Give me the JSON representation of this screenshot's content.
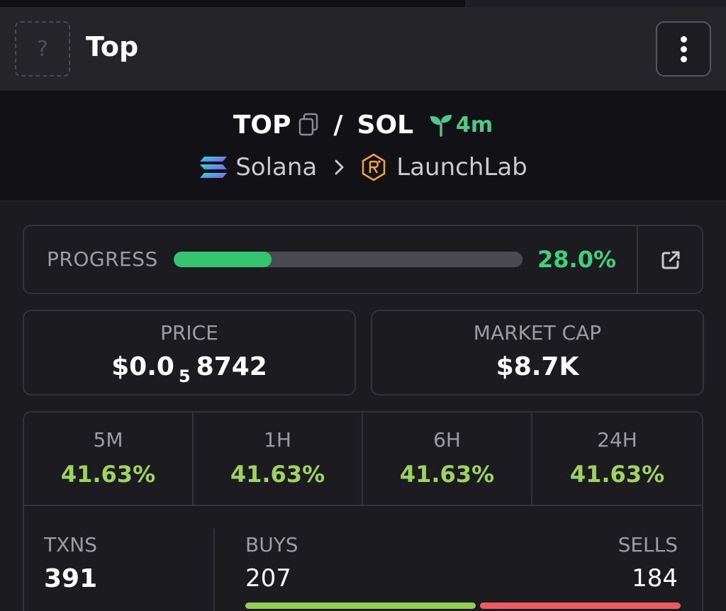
{
  "header": {
    "avatar_glyph": "?",
    "title": "Top",
    "menu_icon": "kebab-menu-icon"
  },
  "pair": {
    "base": "TOP",
    "separator": "/",
    "quote": "SOL",
    "age": "4m",
    "icons": [
      "copy-icon",
      "sprout-icon"
    ]
  },
  "chain": {
    "network": "Solana",
    "dex": "LaunchLab",
    "icons": [
      "solana-logo-icon",
      "chevron-right-icon",
      "launchlab-logo-icon"
    ]
  },
  "progress": {
    "label": "PROGRESS",
    "value": "28.0%",
    "fraction": 0.28,
    "link_icon": "external-link-icon"
  },
  "price": {
    "label": "PRICE",
    "prefix": "$0.0",
    "zeros_count": "5",
    "digits": "8742"
  },
  "market_cap": {
    "label": "MARKET CAP",
    "value": "$8.7K"
  },
  "performance": [
    {
      "label": "5M",
      "value": "41.63%"
    },
    {
      "label": "1H",
      "value": "41.63%"
    },
    {
      "label": "6H",
      "value": "41.63%"
    },
    {
      "label": "24H",
      "value": "41.63%"
    }
  ],
  "txns": {
    "label": "TXNS",
    "value": "391",
    "buys_label": "BUYS",
    "buys": "207",
    "sells_label": "SELLS",
    "sells": "184",
    "buys_fraction": 0.529
  },
  "colors": {
    "accent_green": "#3dd17a",
    "change_green": "#9ed35e",
    "sell_red": "#ee5a5d",
    "background": "#1b1b20"
  }
}
